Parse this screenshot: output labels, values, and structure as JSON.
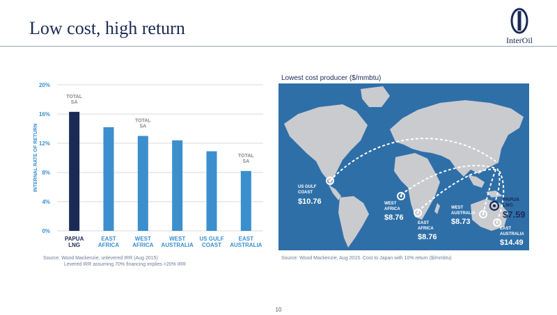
{
  "slide": {
    "title": "Low cost, high return",
    "page_number": "10",
    "logo_text": "InterOil"
  },
  "colors": {
    "navy": "#1b2a55",
    "bar": "#3b8fcd",
    "map_bg": "#2f6fa8",
    "land": "#c9cbcf"
  },
  "chart_data": {
    "type": "bar",
    "ylabel": "INTERNAL RATE OF RETURN",
    "ylim": [
      0,
      20
    ],
    "yticks": [
      "0%",
      "4%",
      "8%",
      "12%",
      "16%",
      "20%"
    ],
    "categories": [
      [
        "PAPUA",
        "LNG"
      ],
      [
        "EAST",
        "AFRICA"
      ],
      [
        "WEST",
        "AFRICA"
      ],
      [
        "WEST",
        "AUSTRALIA"
      ],
      [
        "US GULF",
        "COAST"
      ],
      [
        "EAST",
        "AUSTRALIA"
      ]
    ],
    "values": [
      16.3,
      14.2,
      13.0,
      12.4,
      10.9,
      8.2
    ],
    "highlight_index": 0,
    "annotations": [
      {
        "index": 0,
        "lines": [
          "TOTAL",
          "SA"
        ]
      },
      {
        "index": 2,
        "lines": [
          "TOTAL",
          "SA"
        ]
      },
      {
        "index": 5,
        "lines": [
          "TOTAL",
          "SA"
        ]
      }
    ],
    "grid": true
  },
  "chart_source": [
    "Source: Wood Mackenzie, unlevered IRR (Aug 2015)",
    "Levered IRR assuming 70% financing implies >20% IRR"
  ],
  "map": {
    "title": "Lowest cost producer  ($/mmbtu)",
    "source": "Source: Wood Mackenzie, Aug 2015. Cost to Japan with 10% return ($/mmbtu)",
    "locations": [
      {
        "label": [
          "US GULF",
          "COAST"
        ],
        "value": "$10.76"
      },
      {
        "label": [
          "WEST",
          "AFRICA"
        ],
        "value": "$8.76"
      },
      {
        "label": [
          "EAST",
          "AFRICA"
        ],
        "value": "$8.76"
      },
      {
        "label": [
          "WEST",
          "AUSTRALIA"
        ],
        "value": "$8.73"
      },
      {
        "label": [
          "PAPUA",
          "LNG"
        ],
        "value": "$7.59"
      },
      {
        "label": [
          "EAST",
          "AUSTRALIA"
        ],
        "value": "$14.49"
      }
    ]
  }
}
